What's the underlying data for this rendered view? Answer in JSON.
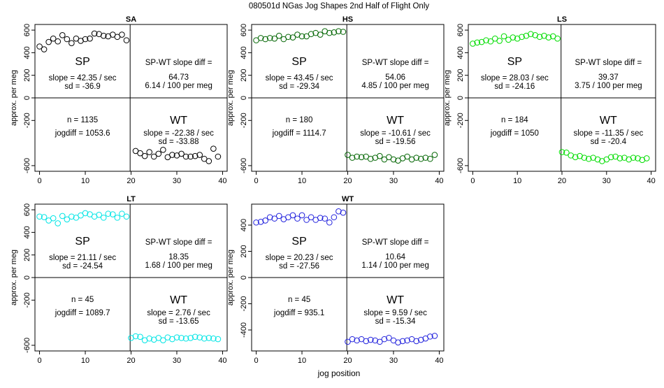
{
  "figure": {
    "title": "080501d    NGas Jog Shapes 2nd Half of Flight Only",
    "xlabel": "jog position"
  },
  "chart_data": [
    {
      "type": "scatter",
      "title": "SA",
      "color": "#000000",
      "ylabel": "approx. per meg",
      "xlim": [
        -1,
        41
      ],
      "ylim": [
        -650,
        650
      ],
      "xticks": [
        0,
        10,
        20,
        30,
        40
      ],
      "yticks": [
        -600,
        -200,
        0,
        200,
        400,
        600
      ],
      "ytick_labels": [
        "-600",
        "-200",
        "0",
        "200",
        "400",
        "600"
      ],
      "sp_x": [
        0,
        1,
        2,
        3,
        4,
        5,
        6,
        7,
        8,
        9,
        10,
        11,
        12,
        13,
        14,
        15,
        16,
        17,
        18,
        19
      ],
      "sp_y": [
        455,
        430,
        495,
        525,
        500,
        555,
        520,
        485,
        525,
        505,
        520,
        525,
        570,
        565,
        550,
        545,
        560,
        540,
        560,
        510
      ],
      "wt_x": [
        21,
        22,
        23,
        24,
        25,
        26,
        27,
        28,
        29,
        30,
        31,
        32,
        33,
        34,
        35,
        36,
        37,
        38,
        39
      ],
      "wt_y": [
        -470,
        -490,
        -515,
        -480,
        -520,
        -495,
        -460,
        -525,
        -505,
        -510,
        -495,
        -520,
        -520,
        -515,
        -505,
        -540,
        -560,
        -450,
        -520
      ],
      "sp_label": "SP",
      "sp_slope": "slope = 42.35 / sec",
      "sp_sd": "sd = -36.9",
      "diff_label": "SP-WT slope diff =",
      "diff_value": "64.73",
      "diff_per": "6.14 / 100 per meg",
      "n": "n = 1135",
      "jogdiff": "jogdiff = 1053.6",
      "wt_label": "WT",
      "wt_slope": "slope = -22.38 / sec",
      "wt_sd": "sd = -33.88"
    },
    {
      "type": "scatter",
      "title": "HS",
      "color": "#006400",
      "ylabel": "approx. per meg",
      "xlim": [
        -1,
        41
      ],
      "ylim": [
        -650,
        650
      ],
      "xticks": [
        0,
        10,
        20,
        30,
        40
      ],
      "yticks": [
        -600,
        -200,
        0,
        200,
        400,
        600
      ],
      "ytick_labels": [
        "-600",
        "-200",
        "0",
        "200",
        "400",
        "600"
      ],
      "sp_x": [
        0,
        1,
        2,
        3,
        4,
        5,
        6,
        7,
        8,
        9,
        10,
        11,
        12,
        13,
        14,
        15,
        16,
        17,
        18,
        19
      ],
      "sp_y": [
        510,
        530,
        520,
        530,
        525,
        550,
        520,
        540,
        535,
        560,
        545,
        545,
        565,
        575,
        560,
        590,
        575,
        580,
        590,
        585
      ],
      "wt_x": [
        20,
        21,
        22,
        23,
        24,
        25,
        26,
        27,
        28,
        29,
        30,
        31,
        32,
        33,
        34,
        35,
        36,
        37,
        38,
        39
      ],
      "wt_y": [
        -505,
        -530,
        -520,
        -525,
        -520,
        -540,
        -530,
        -515,
        -545,
        -525,
        -545,
        -555,
        -535,
        -520,
        -545,
        -530,
        -540,
        -530,
        -540,
        -505
      ],
      "sp_label": "SP",
      "sp_slope": "slope = 43.45 / sec",
      "sp_sd": "sd = -29.34",
      "diff_label": "SP-WT slope diff =",
      "diff_value": "54.06",
      "diff_per": "4.85 / 100 per meg",
      "n": "n = 180",
      "jogdiff": "jogdiff = 1114.7",
      "wt_label": "WT",
      "wt_slope": "slope = -10.61 / sec",
      "wt_sd": "sd = -19.56"
    },
    {
      "type": "scatter",
      "title": "LS",
      "color": "#00dd00",
      "ylabel": "approx. per meg",
      "xlim": [
        -1,
        41
      ],
      "ylim": [
        -650,
        650
      ],
      "xticks": [
        0,
        10,
        20,
        30,
        40
      ],
      "yticks": [
        -600,
        -200,
        0,
        200,
        400,
        600
      ],
      "ytick_labels": [
        "-600",
        "-200",
        "0",
        "200",
        "400",
        "600"
      ],
      "sp_x": [
        0,
        1,
        2,
        3,
        4,
        5,
        6,
        7,
        8,
        9,
        10,
        11,
        12,
        13,
        14,
        15,
        16,
        17,
        18,
        19
      ],
      "sp_y": [
        480,
        490,
        495,
        510,
        500,
        525,
        505,
        545,
        515,
        535,
        525,
        540,
        550,
        565,
        555,
        540,
        550,
        535,
        545,
        525
      ],
      "wt_x": [
        20,
        21,
        22,
        23,
        24,
        25,
        26,
        27,
        28,
        29,
        30,
        31,
        32,
        33,
        34,
        35,
        36,
        37,
        38,
        39
      ],
      "wt_y": [
        -480,
        -485,
        -510,
        -525,
        -515,
        -530,
        -540,
        -530,
        -545,
        -560,
        -545,
        -525,
        -520,
        -535,
        -530,
        -545,
        -530,
        -535,
        -550,
        -535
      ],
      "sp_label": "SP",
      "sp_slope": "slope = 28.03 / sec",
      "sp_sd": "sd = -24.16",
      "diff_label": "SP-WT slope diff =",
      "diff_value": "39.37",
      "diff_per": "3.75 / 100 per meg",
      "n": "n = 184",
      "jogdiff": "jogdiff = 1050",
      "wt_label": "WT",
      "wt_slope": "slope = -11.35 / sec",
      "wt_sd": "sd = -20.4"
    },
    {
      "type": "scatter",
      "title": "LT",
      "color": "#00e5e5",
      "ylabel": "approx. per meg",
      "xlim": [
        -1,
        41
      ],
      "ylim": [
        -650,
        650
      ],
      "xticks": [
        0,
        10,
        20,
        30,
        40
      ],
      "yticks": [
        -600,
        -200,
        0,
        200,
        400,
        600
      ],
      "ytick_labels": [
        "-600",
        "-200",
        "0",
        "200",
        "400",
        "600"
      ],
      "sp_x": [
        0,
        1,
        2,
        3,
        4,
        5,
        6,
        7,
        8,
        9,
        10,
        11,
        12,
        13,
        14,
        15,
        16,
        17,
        18,
        19
      ],
      "sp_y": [
        540,
        535,
        505,
        525,
        480,
        545,
        515,
        540,
        530,
        550,
        570,
        560,
        540,
        555,
        530,
        565,
        560,
        530,
        565,
        540
      ],
      "wt_x": [
        20,
        21,
        22,
        23,
        24,
        25,
        26,
        27,
        28,
        29,
        30,
        31,
        32,
        33,
        34,
        35,
        36,
        37,
        38,
        39
      ],
      "wt_y": [
        -535,
        -520,
        -525,
        -555,
        -540,
        -550,
        -535,
        -555,
        -530,
        -545,
        -530,
        -535,
        -540,
        -535,
        -525,
        -530,
        -540,
        -535,
        -540,
        -545
      ],
      "sp_label": "SP",
      "sp_slope": "slope = 21.11 / sec",
      "sp_sd": "sd = -24.54",
      "diff_label": "SP-WT slope diff =",
      "diff_value": "18.35",
      "diff_per": "1.68 / 100 per meg",
      "n": "n = 45",
      "jogdiff": "jogdiff = 1089.7",
      "wt_label": "WT",
      "wt_slope": "slope = 2.76 / sec",
      "wt_sd": "sd = -13.65"
    },
    {
      "type": "scatter",
      "title": "WT",
      "color": "#2222dd",
      "ylabel": "approx. per meg",
      "xlim": [
        -1,
        41
      ],
      "ylim": [
        -560,
        560
      ],
      "xticks": [
        0,
        10,
        20,
        30,
        40
      ],
      "yticks": [
        -400,
        -200,
        0,
        200,
        400
      ],
      "ytick_labels": [
        "-400",
        "-200",
        "0",
        "200",
        "400"
      ],
      "sp_x": [
        0,
        1,
        2,
        3,
        4,
        5,
        6,
        7,
        8,
        9,
        10,
        11,
        12,
        13,
        14,
        15,
        16,
        17,
        18,
        19
      ],
      "sp_y": [
        420,
        425,
        435,
        460,
        450,
        470,
        445,
        460,
        475,
        450,
        475,
        440,
        460,
        440,
        455,
        450,
        420,
        460,
        505,
        495
      ],
      "wt_x": [
        20,
        21,
        22,
        23,
        24,
        25,
        26,
        27,
        28,
        29,
        30,
        31,
        32,
        33,
        34,
        35,
        36,
        37,
        38,
        39
      ],
      "wt_y": [
        -490,
        -470,
        -480,
        -470,
        -485,
        -475,
        -480,
        -490,
        -470,
        -460,
        -480,
        -495,
        -485,
        -480,
        -470,
        -485,
        -475,
        -465,
        -450,
        -445
      ],
      "sp_label": "SP",
      "sp_slope": "slope = 20.23 / sec",
      "sp_sd": "sd = -27.56",
      "diff_label": "SP-WT slope diff =",
      "diff_value": "10.64",
      "diff_per": "1.14 / 100 per meg",
      "n": "n = 45",
      "jogdiff": "jogdiff = 935.1",
      "wt_label": "WT",
      "wt_slope": "slope = 9.59 / sec",
      "wt_sd": "sd = -15.34"
    }
  ]
}
